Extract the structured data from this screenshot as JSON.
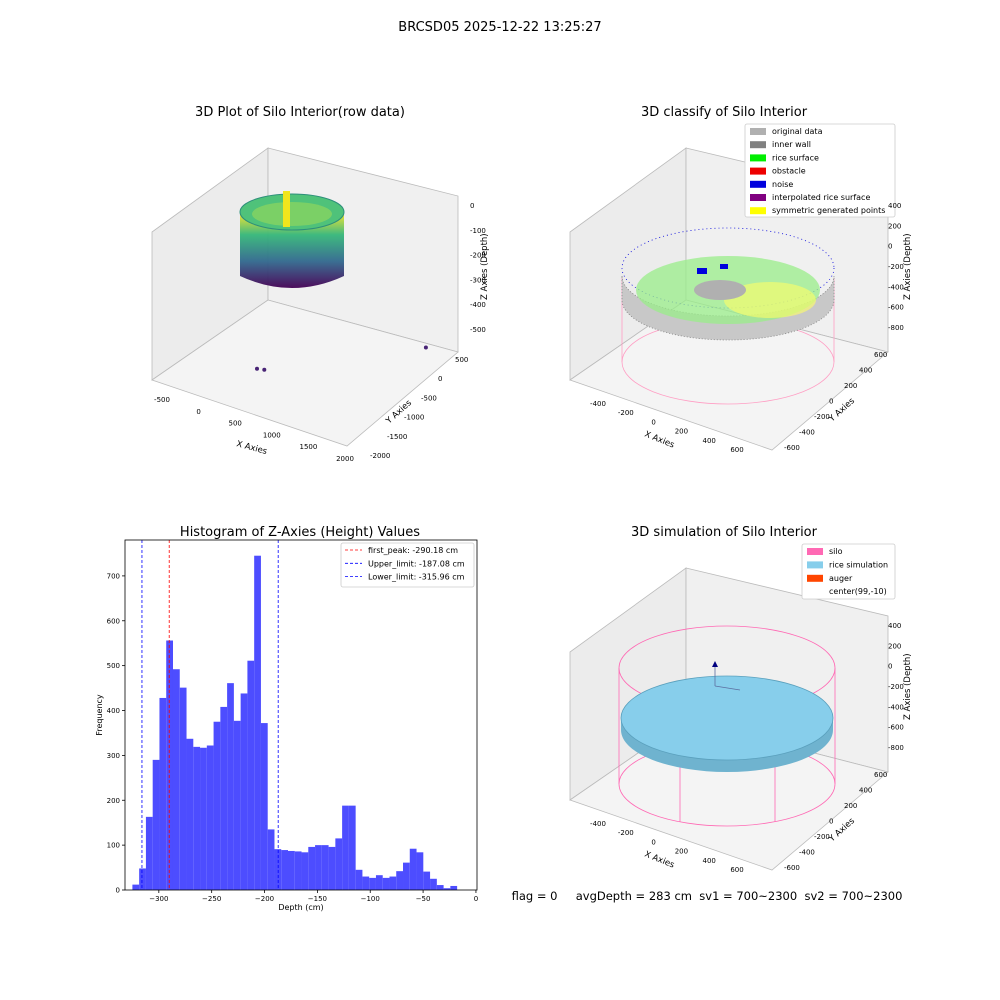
{
  "suptitle": "BRCSD05 2025-12-22 13:25:27",
  "footer": "flag = 0     avgDepth = 283 cm  sv1 = 700~2300  sv2 = 700~2300",
  "chart_data": [
    {
      "type": "scatter3d",
      "title": "3D Plot of Silo Interior(row data)",
      "xlabel": "X Axies",
      "ylabel": "Y Axies",
      "zlabel": "Z Axies (Depth)",
      "x_ticks": [
        "-500",
        "0",
        "500",
        "1000",
        "1500",
        "2000"
      ],
      "y_ticks": [
        "-2000",
        "-1500",
        "-1000",
        "-500",
        "0",
        "500"
      ],
      "z_ticks": [
        "0",
        "-100",
        "-200",
        "-300",
        "-400",
        "-500"
      ],
      "colormap": [
        "#440154",
        "#31688e",
        "#35b779",
        "#fde725"
      ],
      "outliers": [
        {
          "x": 330,
          "y": -1130,
          "z": -560
        },
        {
          "x": 410,
          "y": -1100,
          "z": -540
        },
        {
          "x": 1700,
          "y": 500,
          "z": -540
        }
      ]
    },
    {
      "type": "scatter3d",
      "title": "3D classify of Silo Interior",
      "xlabel": "X Axies",
      "ylabel": "Y Axies",
      "zlabel": "Z Axies (Depth)",
      "x_ticks": [
        "-400",
        "-200",
        "0",
        "200",
        "400",
        "600"
      ],
      "y_ticks": [
        "-600",
        "-400",
        "-200",
        "0",
        "200",
        "400",
        "600"
      ],
      "z_ticks": [
        "400",
        "200",
        "0",
        "-200",
        "-400",
        "-600",
        "-800"
      ],
      "legend_position": "top-right",
      "legend": [
        {
          "label": "original data",
          "color": "#b0b0b0"
        },
        {
          "label": "inner wall",
          "color": "#808080"
        },
        {
          "label": "rice surface",
          "color": "#00ee00"
        },
        {
          "label": "obstacle",
          "color": "#ee0000"
        },
        {
          "label": "noise",
          "color": "#0000dd"
        },
        {
          "label": "interpolated rice surface",
          "color": "#800080"
        },
        {
          "label": "symmetric generated points",
          "color": "#ffff00"
        }
      ],
      "cylinder_color": "#ff9ec4"
    },
    {
      "type": "bar",
      "title": "Histogram of Z-Axies (Height) Values",
      "xlabel": "Depth (cm)",
      "ylabel": "Frequency",
      "xlim": [
        -332,
        1
      ],
      "ylim": [
        0,
        780
      ],
      "x_ticks": [
        -300,
        -250,
        -200,
        -150,
        -100,
        -50,
        0
      ],
      "y_ticks": [
        0,
        100,
        200,
        300,
        400,
        500,
        600,
        700
      ],
      "bin_start": -325,
      "bin_width": 6.4,
      "values": [
        12,
        48,
        163,
        290,
        428,
        556,
        492,
        451,
        337,
        319,
        317,
        322,
        375,
        408,
        461,
        377,
        438,
        511,
        745,
        372,
        135,
        91,
        89,
        87,
        86,
        84,
        96,
        100,
        100,
        96,
        115,
        188,
        188,
        45,
        30,
        27,
        33,
        27,
        30,
        42,
        61,
        92,
        84,
        41,
        25,
        11,
        4,
        9
      ],
      "bar_color": "#4d4dff",
      "vlines": [
        {
          "x": -290.18,
          "color": "#ff0000",
          "label": "first_peak: -290.18 cm"
        },
        {
          "x": -187.08,
          "color": "#0000ff",
          "label": "Upper_limit: -187.08 cm"
        },
        {
          "x": -315.96,
          "color": "#0000ff",
          "label": "Lower_limit: -315.96 cm"
        }
      ],
      "legend_position": "top-right"
    },
    {
      "type": "surface3d",
      "title": "3D simulation of Silo Interior",
      "xlabel": "X Axies",
      "ylabel": "Y Axies",
      "zlabel": "Z Axies (Depth)",
      "x_ticks": [
        "-400",
        "-200",
        "0",
        "200",
        "400",
        "600"
      ],
      "y_ticks": [
        "-600",
        "-400",
        "-200",
        "0",
        "200",
        "400",
        "600"
      ],
      "z_ticks": [
        "400",
        "200",
        "0",
        "-200",
        "-400",
        "-600",
        "-800"
      ],
      "legend_position": "top-right",
      "legend": [
        {
          "label": "silo",
          "color": "#ff69b4"
        },
        {
          "label": "rice simulation",
          "color": "#87ceeb"
        },
        {
          "label": "auger",
          "color": "#ff4500"
        },
        {
          "label": "center(99,-10)",
          "color": ""
        }
      ]
    }
  ]
}
